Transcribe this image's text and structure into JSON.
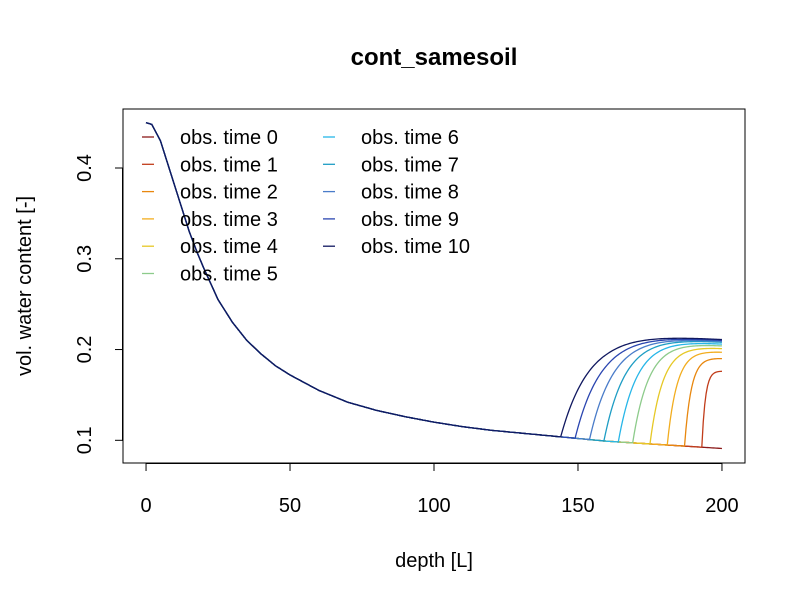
{
  "chart_data": {
    "type": "line",
    "title": "cont_samesoil",
    "xlabel": "depth [L]",
    "ylabel": "vol. water content [-]",
    "xlim": [
      -8,
      208
    ],
    "ylim": [
      0.075,
      0.465
    ],
    "xticks": [
      0,
      50,
      100,
      150,
      200
    ],
    "xtick_labels": [
      "0",
      "50",
      "100",
      "150",
      "200"
    ],
    "yticks": [
      0.1,
      0.2,
      0.3,
      0.4
    ],
    "ytick_labels": [
      "0.1",
      "0.2",
      "0.3",
      "0.4"
    ],
    "grid": false,
    "legend_position": "top-left",
    "base_profile": {
      "x": [
        0,
        2,
        5,
        8,
        10,
        12,
        15,
        18,
        20,
        25,
        30,
        35,
        40,
        45,
        50,
        60,
        70,
        80,
        90,
        100,
        110,
        120,
        130,
        140,
        150,
        160,
        170,
        180,
        190,
        200
      ],
      "y": [
        0.45,
        0.448,
        0.43,
        0.4,
        0.38,
        0.36,
        0.33,
        0.305,
        0.29,
        0.255,
        0.23,
        0.21,
        0.195,
        0.182,
        0.172,
        0.155,
        0.142,
        0.133,
        0.126,
        0.12,
        0.115,
        0.111,
        0.108,
        0.105,
        0.102,
        0.099,
        0.097,
        0.095,
        0.093,
        0.091
      ]
    },
    "series": [
      {
        "name": "obs. time 0",
        "color": "#8B1A1A",
        "front_depth": 200,
        "top_value": 0.09
      },
      {
        "name": "obs. time 1",
        "color": "#C13D1B",
        "front_depth": 193,
        "top_value": 0.176
      },
      {
        "name": "obs. time 2",
        "color": "#E8870E",
        "front_depth": 187,
        "top_value": 0.19
      },
      {
        "name": "obs. time 3",
        "color": "#F2AD1F",
        "front_depth": 181,
        "top_value": 0.197
      },
      {
        "name": "obs. time 4",
        "color": "#E6C826",
        "front_depth": 175,
        "top_value": 0.201
      },
      {
        "name": "obs. time 5",
        "color": "#8DCB8B",
        "front_depth": 169,
        "top_value": 0.204
      },
      {
        "name": "obs. time 6",
        "color": "#27B6E8",
        "front_depth": 164,
        "top_value": 0.206
      },
      {
        "name": "obs. time 7",
        "color": "#1E9DC4",
        "front_depth": 159,
        "top_value": 0.208
      },
      {
        "name": "obs. time 8",
        "color": "#4A7CC9",
        "front_depth": 154,
        "top_value": 0.209
      },
      {
        "name": "obs. time 9",
        "color": "#2A45B0",
        "front_depth": 149,
        "top_value": 0.21
      },
      {
        "name": "obs. time 10",
        "color": "#101860",
        "front_depth": 144,
        "top_value": 0.211
      }
    ]
  }
}
